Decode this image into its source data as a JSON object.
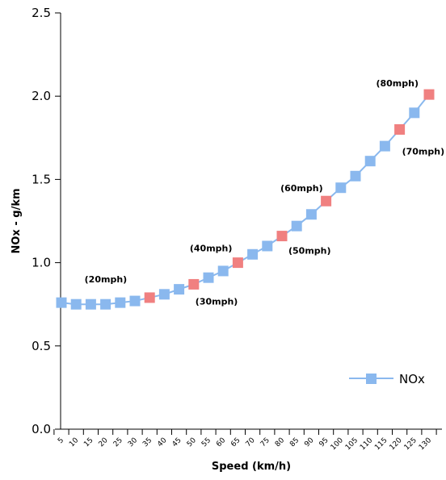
{
  "chart_data": {
    "type": "line",
    "title": "",
    "xlabel": "Speed (km/h)",
    "ylabel": "NOx - g/km",
    "ylim": [
      0,
      2.5
    ],
    "yticks": [
      "0.0",
      "0.5",
      "1.0",
      "1.5",
      "2.0",
      "2.5"
    ],
    "categories": [
      "5",
      "10",
      "15",
      "20",
      "25",
      "30",
      "35",
      "40",
      "45",
      "50",
      "55",
      "60",
      "65",
      "70",
      "75",
      "80",
      "85",
      "90",
      "95",
      "100",
      "105",
      "110",
      "115",
      "120",
      "125",
      "130"
    ],
    "series": [
      {
        "name": "NOx",
        "color": "#8ab8ee",
        "values": [
          0.76,
          0.75,
          0.75,
          0.75,
          0.76,
          0.77,
          0.79,
          0.81,
          0.84,
          0.87,
          0.91,
          0.95,
          1.0,
          1.05,
          1.1,
          1.16,
          1.22,
          1.29,
          1.37,
          1.45,
          1.52,
          1.61,
          1.7,
          1.8,
          1.9,
          2.01
        ]
      }
    ],
    "highlight_color": "#f08080",
    "annotations": [
      {
        "text": "(20mph)",
        "category": "35"
      },
      {
        "text": "(30mph)",
        "category": "50"
      },
      {
        "text": "(40mph)",
        "category": "65"
      },
      {
        "text": "(50mph)",
        "category": "80"
      },
      {
        "text": "(60mph)",
        "category": "95"
      },
      {
        "text": "(70mph)",
        "category": "120"
      },
      {
        "text": "(80mph)",
        "category": "130"
      }
    ],
    "legend_position": "bottom-right",
    "grid": false
  }
}
